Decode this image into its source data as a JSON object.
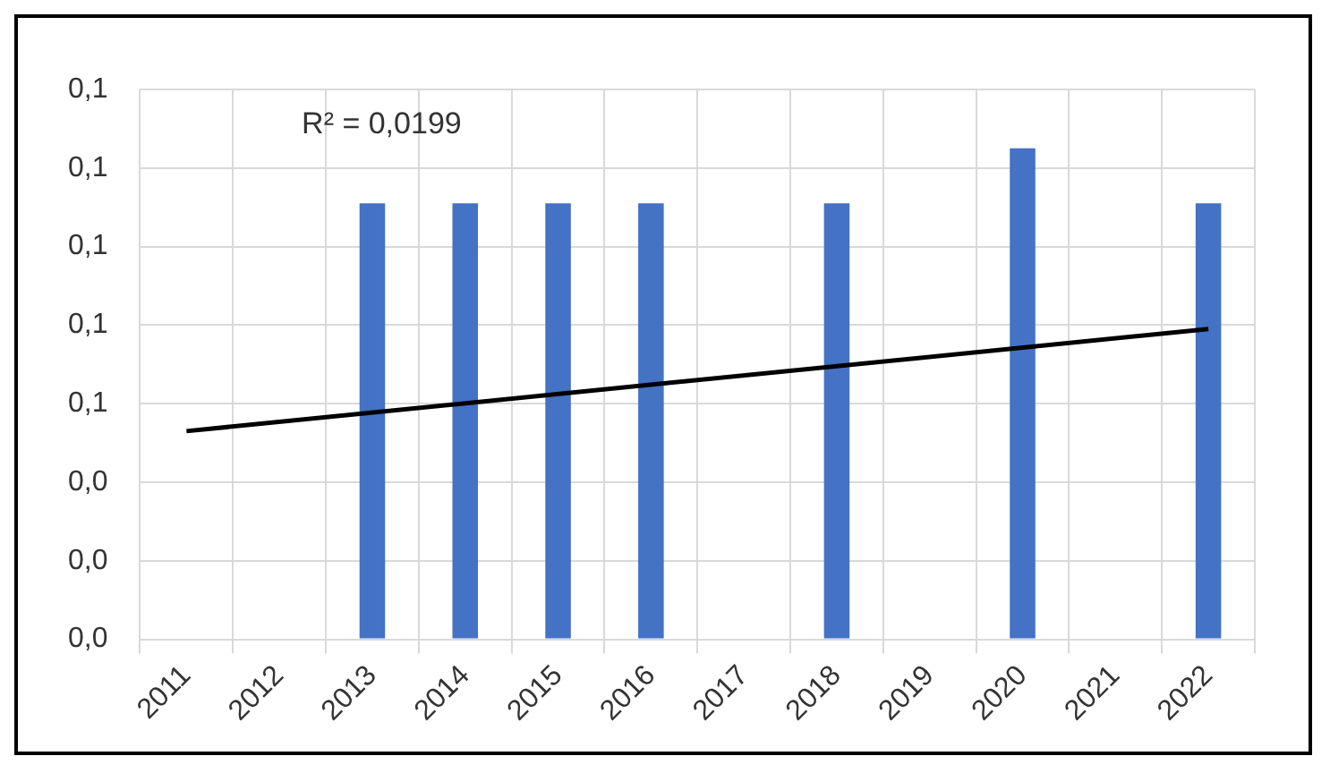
{
  "chart_data": {
    "type": "bar",
    "categories": [
      "2011",
      "2012",
      "2013",
      "2014",
      "2015",
      "2016",
      "2017",
      "2018",
      "2019",
      "2020",
      "2021",
      "2022"
    ],
    "series": [
      {
        "color": "#4472c4",
        "values": [
          null,
          null,
          0.111,
          0.111,
          0.111,
          0.111,
          null,
          0.111,
          null,
          0.125,
          null,
          0.111
        ]
      },
      {
        "type": "line",
        "color": "#000000",
        "values": [
          0.053,
          null,
          null,
          null,
          null,
          null,
          null,
          null,
          null,
          null,
          null,
          0.079
        ]
      }
    ],
    "ylim": [
      0,
      0.14
    ],
    "yticks": [
      {
        "value": 0,
        "label": "0,0"
      },
      {
        "value": 0.02,
        "label": "0,0"
      },
      {
        "value": 0.04,
        "label": "0,0"
      },
      {
        "value": 0.06,
        "label": "0,1"
      },
      {
        "value": 0.08,
        "label": "0,1"
      },
      {
        "value": 0.1,
        "label": "0,1"
      },
      {
        "value": 0.12,
        "label": "0,1"
      },
      {
        "value": 0.14,
        "label": "0,1"
      }
    ],
    "annotations": [
      "R² = 0,0199"
    ],
    "grid": true
  }
}
